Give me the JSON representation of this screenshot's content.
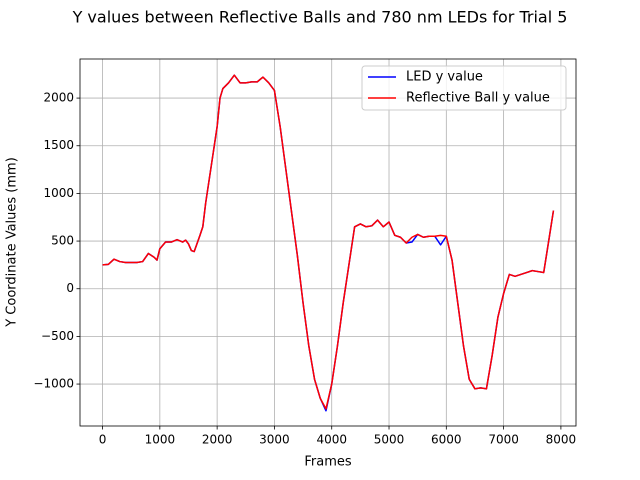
{
  "chart_data": {
    "type": "line",
    "title": "Y values between Reflective Balls and 780 nm LEDs for Trial 5",
    "x_label": "Frames",
    "y_label": "Y Coordinate Values (mm)",
    "x": [
      0,
      100,
      200,
      300,
      400,
      500,
      600,
      700,
      800,
      900,
      950,
      1000,
      1100,
      1200,
      1300,
      1400,
      1450,
      1500,
      1550,
      1600,
      1700,
      1750,
      1800,
      1900,
      2000,
      2050,
      2100,
      2200,
      2300,
      2400,
      2500,
      2600,
      2700,
      2800,
      2900,
      3000,
      3100,
      3200,
      3300,
      3400,
      3500,
      3600,
      3700,
      3800,
      3900,
      4000,
      4100,
      4200,
      4300,
      4400,
      4500,
      4600,
      4700,
      4800,
      4900,
      5000,
      5100,
      5200,
      5300,
      5400,
      5500,
      5600,
      5700,
      5800,
      5900,
      6000,
      6100,
      6200,
      6300,
      6400,
      6500,
      6600,
      6700,
      6800,
      6900,
      7000,
      7100,
      7200,
      7300,
      7400,
      7500,
      7600,
      7700,
      7800,
      7870
    ],
    "series": [
      {
        "name": "LED y value",
        "color": "#0000ff",
        "values": [
          250,
          255,
          310,
          285,
          275,
          275,
          275,
          285,
          370,
          330,
          300,
          420,
          490,
          490,
          515,
          490,
          510,
          470,
          400,
          390,
          560,
          650,
          900,
          1300,
          1700,
          2000,
          2100,
          2160,
          2240,
          2160,
          2160,
          2170,
          2170,
          2220,
          2160,
          2080,
          1700,
          1250,
          800,
          350,
          -150,
          -600,
          -950,
          -1150,
          -1280,
          -1000,
          -600,
          -150,
          250,
          650,
          680,
          650,
          660,
          720,
          650,
          700,
          560,
          540,
          480,
          490,
          570,
          540,
          550,
          550,
          460,
          550,
          300,
          -150,
          -600,
          -950,
          -1050,
          -1040,
          -1050,
          -700,
          -300,
          -50,
          150,
          130,
          150,
          170,
          190,
          180,
          170,
          550,
          820
        ]
      },
      {
        "name": "Reflective Ball y value",
        "color": "#ff0000",
        "values": [
          250,
          255,
          310,
          285,
          275,
          275,
          275,
          285,
          370,
          330,
          300,
          420,
          490,
          490,
          515,
          490,
          510,
          470,
          400,
          390,
          560,
          650,
          900,
          1300,
          1700,
          2000,
          2100,
          2160,
          2240,
          2160,
          2160,
          2170,
          2170,
          2220,
          2160,
          2080,
          1700,
          1250,
          800,
          350,
          -150,
          -600,
          -950,
          -1150,
          -1260,
          -1000,
          -600,
          -150,
          250,
          650,
          680,
          650,
          660,
          720,
          650,
          700,
          560,
          540,
          480,
          540,
          570,
          540,
          550,
          550,
          560,
          550,
          300,
          -150,
          -600,
          -950,
          -1050,
          -1040,
          -1050,
          -700,
          -300,
          -50,
          150,
          130,
          150,
          170,
          190,
          180,
          170,
          550,
          820
        ]
      }
    ],
    "xlim": [
      -393.5,
      8263.5
    ],
    "xticks": [
      0,
      1000,
      2000,
      3000,
      4000,
      5000,
      6000,
      7000,
      8000
    ],
    "ylim": [
      -1440,
      2410
    ],
    "yticks": [
      {
        "value": -1000,
        "label": "−1000"
      },
      {
        "value": -500,
        "label": "−500"
      },
      0,
      500,
      1000,
      1500,
      2000
    ],
    "grid": true,
    "legend": "upper right"
  }
}
